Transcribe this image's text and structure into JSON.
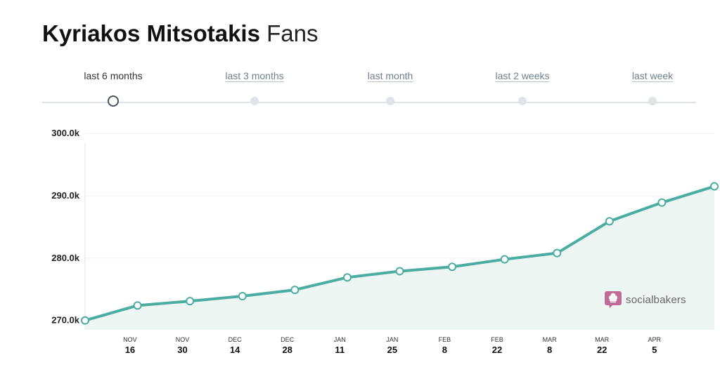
{
  "header": {
    "name": "Kyriakos Mitsotakis",
    "suffix": "Fans"
  },
  "range_tabs": [
    {
      "label": "last 6 months",
      "active": true
    },
    {
      "label": "last 3 months",
      "active": false
    },
    {
      "label": "last month",
      "active": false
    },
    {
      "label": "last 2 weeks",
      "active": false
    },
    {
      "label": "last week",
      "active": false
    }
  ],
  "brand": {
    "label": "socialbakers",
    "icon": "chef-hat-speech-bubble-icon"
  },
  "colors": {
    "line": "#4bada1",
    "area": "#eef6f4",
    "brand": "#c06b95"
  },
  "chart_data": {
    "type": "area",
    "title": "",
    "xlabel": "",
    "ylabel": "",
    "ylim": [
      268500,
      300000
    ],
    "yticks": [
      270000,
      280000,
      290000,
      300000
    ],
    "ytick_labels": [
      "270.0k",
      "280.0k",
      "290.0k",
      "300.0k"
    ],
    "xticks": [
      {
        "month": "NOV",
        "day": "16",
        "date": "Nov 16"
      },
      {
        "month": "NOV",
        "day": "30",
        "date": "Nov 30"
      },
      {
        "month": "DEC",
        "day": "14",
        "date": "Dec 14"
      },
      {
        "month": "DEC",
        "day": "28",
        "date": "Dec 28"
      },
      {
        "month": "JAN",
        "day": "11",
        "date": "Jan 11"
      },
      {
        "month": "JAN",
        "day": "25",
        "date": "Jan 25"
      },
      {
        "month": "FEB",
        "day": "8",
        "date": "Feb 8"
      },
      {
        "month": "FEB",
        "day": "22",
        "date": "Feb 22"
      },
      {
        "month": "MAR",
        "day": "8",
        "date": "Mar 8"
      },
      {
        "month": "MAR",
        "day": "22",
        "date": "Mar 22"
      },
      {
        "month": "APR",
        "day": "5",
        "date": "Apr 5"
      }
    ],
    "grid": true,
    "series": [
      {
        "x": [
          "Nov 4",
          "Nov 18",
          "Dec 2",
          "Dec 16",
          "Dec 30",
          "Jan 13",
          "Jan 27",
          "Feb 10",
          "Feb 24",
          "Mar 10",
          "Mar 24",
          "Apr 7",
          "Apr 21"
        ],
        "values": [
          270000,
          272400,
          273100,
          273900,
          274900,
          276900,
          277900,
          278600,
          279800,
          280800,
          285900,
          288900,
          291500
        ]
      }
    ]
  }
}
